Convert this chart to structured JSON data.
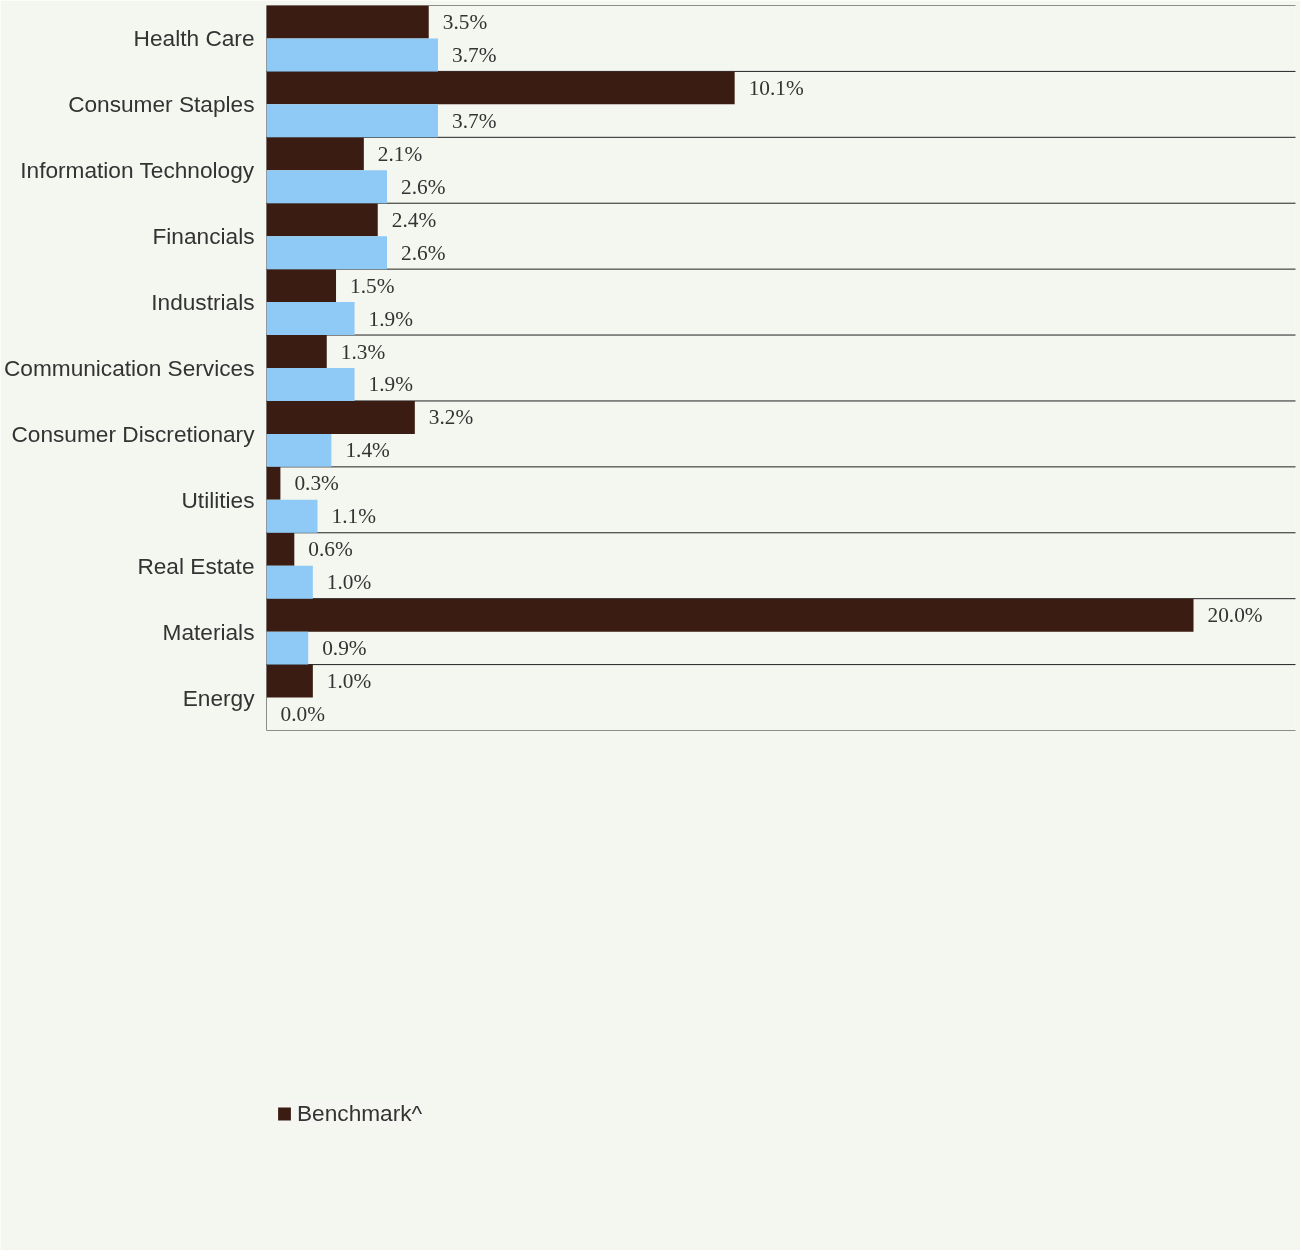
{
  "chart_data": {
    "type": "bar",
    "orientation": "horizontal",
    "legend": "bottom left",
    "grid": false,
    "categories": [
      "Health Care",
      "Consumer Staples",
      "Information Technology",
      "Financials",
      "Industrials",
      "Communication Services",
      "Consumer Discretionary",
      "Utilities",
      "Real Estate",
      "Materials",
      "Energy"
    ],
    "series": [
      {
        "name": "Benchmark^",
        "color": "#3a1c12",
        "values": [
          3.5,
          10.1,
          2.1,
          2.4,
          1.5,
          1.3,
          3.2,
          0.3,
          0.6,
          20.0,
          1.0
        ],
        "value_labels": [
          "3.5%",
          "10.1%",
          "2.1%",
          "2.4%",
          "1.5%",
          "1.3%",
          "3.2%",
          "0.3%",
          "0.6%",
          "20.0%",
          "1.0%"
        ]
      },
      {
        "color": "#8fcaf7",
        "values": [
          3.7,
          3.7,
          2.6,
          2.6,
          1.9,
          1.9,
          1.4,
          1.1,
          1.0,
          0.9,
          0.0
        ],
        "value_labels": [
          "3.7%",
          "3.7%",
          "2.6%",
          "2.6%",
          "1.9%",
          "1.9%",
          "1.4%",
          "1.1%",
          "1.0%",
          "0.9%",
          "0.0%"
        ]
      }
    ]
  }
}
